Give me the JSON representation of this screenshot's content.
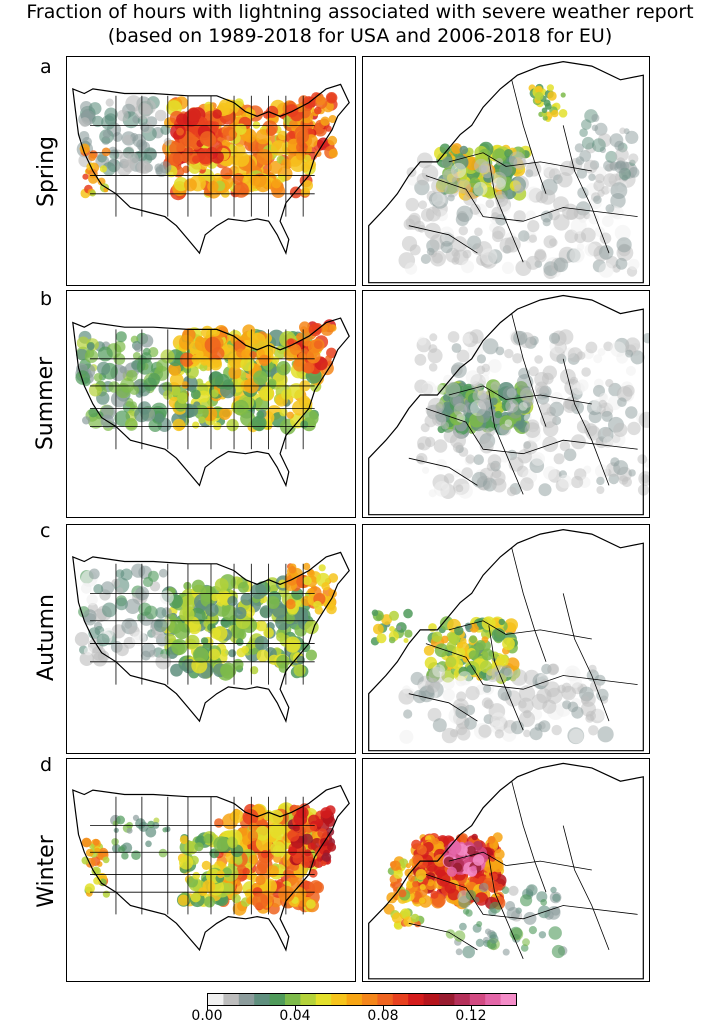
{
  "title_line1": "Fraction of hours with lightning associated with severe weather report",
  "title_line2": "(based on 1989-2018 for USA and 2006-2018 for EU)",
  "panels": [
    {
      "letter": "a",
      "season": "Spring"
    },
    {
      "letter": "b",
      "season": "Summer"
    },
    {
      "letter": "c",
      "season": "Autumn"
    },
    {
      "letter": "d",
      "season": "Winter"
    }
  ],
  "colorbar": {
    "min": 0.0,
    "max": 0.14,
    "ticks": [
      "0.00",
      "0.04",
      "0.08",
      "0.12"
    ],
    "colors": [
      "#f0f0f0",
      "#bdbdbd",
      "#8c9c9c",
      "#5f8f7e",
      "#4f9a5a",
      "#7dba4a",
      "#b4d23a",
      "#e3e02c",
      "#f6c41c",
      "#f7a514",
      "#f4861a",
      "#ef6420",
      "#e7401f",
      "#d41c1c",
      "#b5141c",
      "#991c30",
      "#b5305a",
      "#d24a82",
      "#e466a8",
      "#f48cc8"
    ]
  },
  "regions": [
    "USA",
    "EU"
  ]
}
